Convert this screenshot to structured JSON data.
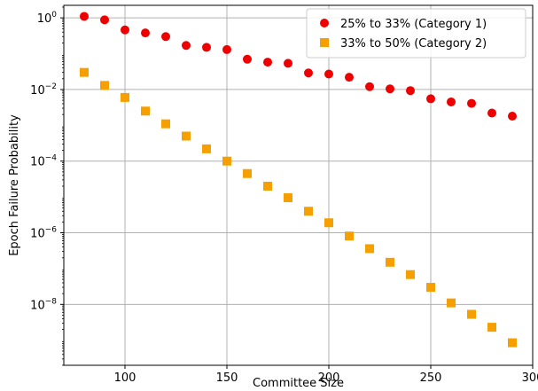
{
  "chart_data": {
    "type": "scatter",
    "xlabel": "Committee Size",
    "ylabel": "Epoch Failure Probability",
    "xlim": [
      70,
      300
    ],
    "ylim_log10": [
      -9.7,
      0.35
    ],
    "yscale": "log",
    "grid": true,
    "legend_position": "top-right",
    "x_ticks": [
      100,
      150,
      200,
      250,
      300
    ],
    "y_ticks": [
      {
        "base": "10",
        "exp": "0",
        "value": 1
      },
      {
        "base": "10",
        "exp": "−2",
        "value": 0.01
      },
      {
        "base": "10",
        "exp": "−4",
        "value": 0.0001
      },
      {
        "base": "10",
        "exp": "−6",
        "value": 1e-06
      },
      {
        "base": "10",
        "exp": "−8",
        "value": 1e-08
      }
    ],
    "series": [
      {
        "name": "25% to 33% (Category 1)",
        "marker": "circle",
        "color": "#ee0000",
        "x": [
          80,
          90,
          100,
          110,
          120,
          130,
          140,
          150,
          160,
          170,
          180,
          190,
          200,
          210,
          220,
          230,
          240,
          250,
          260,
          270,
          280,
          290
        ],
        "y": [
          1.1,
          0.88,
          0.46,
          0.38,
          0.3,
          0.17,
          0.15,
          0.13,
          0.07,
          0.058,
          0.054,
          0.029,
          0.027,
          0.022,
          0.012,
          0.0104,
          0.0093,
          0.0055,
          0.0045,
          0.0041,
          0.0022,
          0.0018
        ]
      },
      {
        "name": "33% to 50% (Category 2)",
        "marker": "square",
        "color": "#f5a000",
        "x": [
          80,
          90,
          100,
          110,
          120,
          130,
          140,
          150,
          160,
          170,
          180,
          190,
          200,
          210,
          220,
          230,
          240,
          250,
          260,
          270,
          280,
          290
        ],
        "y": [
          0.03,
          0.013,
          0.006,
          0.0025,
          0.0011,
          0.0005,
          0.00022,
          0.0001,
          4.5e-05,
          2e-05,
          9.5e-06,
          4e-06,
          1.9e-06,
          8.1e-07,
          3.6e-07,
          1.5e-07,
          6.8e-08,
          3e-08,
          1.1e-08,
          5.3e-09,
          2.3e-09,
          8.5e-10
        ]
      }
    ]
  }
}
